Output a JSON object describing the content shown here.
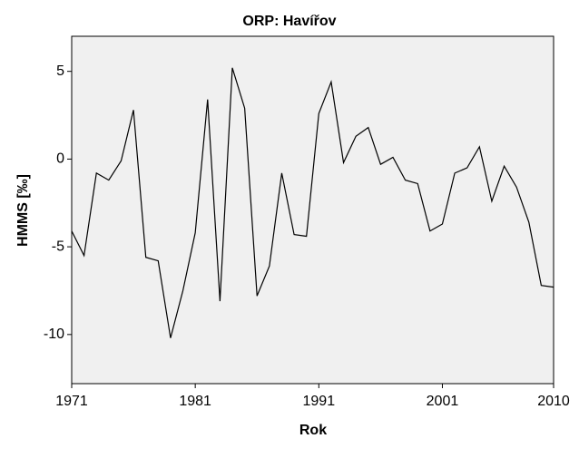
{
  "chart_data": {
    "type": "line",
    "title": "ORP: Havířov",
    "x_label": "Rok",
    "y_label": "HMMS [‰]",
    "x": [
      1971,
      1972,
      1973,
      1974,
      1975,
      1976,
      1977,
      1978,
      1979,
      1980,
      1981,
      1982,
      1983,
      1984,
      1985,
      1986,
      1987,
      1988,
      1989,
      1990,
      1991,
      1992,
      1993,
      1994,
      1995,
      1996,
      1997,
      1998,
      1999,
      2000,
      2001,
      2002,
      2003,
      2004,
      2005,
      2006,
      2007,
      2008,
      2009,
      2010
    ],
    "values": [
      -4.1,
      -5.5,
      -0.8,
      -1.2,
      -0.1,
      2.8,
      -5.6,
      -5.8,
      -10.2,
      -7.5,
      -4.2,
      3.4,
      -8.1,
      5.2,
      2.9,
      -7.8,
      -6.1,
      -0.8,
      -4.3,
      -4.4,
      2.6,
      4.4,
      -0.2,
      1.3,
      1.8,
      -0.3,
      0.1,
      -1.2,
      -1.4,
      -4.1,
      -3.7,
      -0.8,
      -0.5,
      0.7,
      -2.4,
      -0.4,
      -1.6,
      -3.6,
      -7.2,
      -7.3
    ],
    "color": "#000000",
    "xlim": [
      1971,
      2010
    ],
    "xticks": [
      1971,
      1981,
      1991,
      2001,
      2010
    ],
    "ylim": [
      -12.8,
      7
    ],
    "yticks": [
      5,
      0,
      -5,
      -10
    ],
    "background": "#f0f0f0"
  }
}
